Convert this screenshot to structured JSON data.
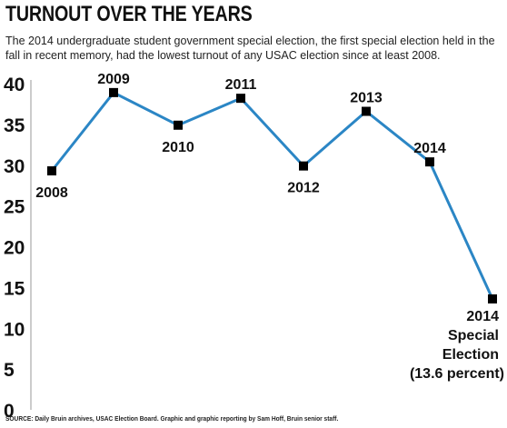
{
  "header": {
    "title": "TURNOUT OVER THE YEARS",
    "subtitle": "The 2014 undergraduate student government special election, the first special election held in the fall in recent memory, had the lowest turnout of any USAC election since at least 2008."
  },
  "footer": {
    "source": "SOURCE: Daily Bruin archives, USAC Election Board. Graphic and graphic reporting by Sam Hoff, Bruin senior staff."
  },
  "colors": {
    "line": "#2b86c5",
    "marker": "#000000",
    "axis": "#cccccc"
  },
  "chart_data": {
    "type": "line",
    "title": "TURNOUT OVER THE YEARS",
    "xlabel": "",
    "ylabel": "",
    "ylim": [
      0,
      40
    ],
    "yticks": [
      0,
      5,
      10,
      15,
      20,
      25,
      30,
      35,
      40
    ],
    "grid": false,
    "legend": "none",
    "series": [
      {
        "points": [
          {
            "label": "2008",
            "value": 29.3
          },
          {
            "label": "2009",
            "value": 38.9
          },
          {
            "label": "2010",
            "value": 34.9
          },
          {
            "label": "2011",
            "value": 38.2
          },
          {
            "label": "2012",
            "value": 29.9
          },
          {
            "label": "2013",
            "value": 36.6
          },
          {
            "label": "2014",
            "value": 30.4
          },
          {
            "label": "2014 Special Election (13.6 percent)",
            "value": 13.6
          }
        ]
      }
    ]
  }
}
